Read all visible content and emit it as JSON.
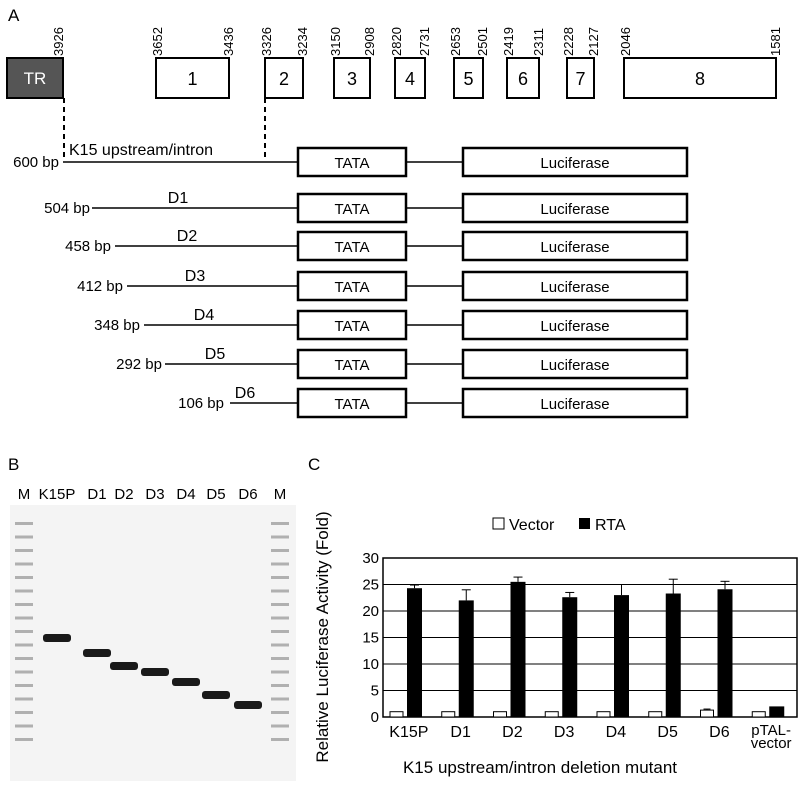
{
  "panel_labels": {
    "a": "A",
    "b": "B",
    "c": "C"
  },
  "panel_a": {
    "tr_label": "TR",
    "exons": [
      {
        "label": "1",
        "start": "3652",
        "end": "3436"
      },
      {
        "label": "2",
        "start": "3326",
        "end": "3234"
      },
      {
        "label": "3",
        "start": "3150",
        "end": "2908"
      },
      {
        "label": "4",
        "start": "2820",
        "end": "2731"
      },
      {
        "label": "5",
        "start": "2653",
        "end": "2501"
      },
      {
        "label": "6",
        "start": "2419",
        "end": "2311"
      },
      {
        "label": "7",
        "start": "2228",
        "end": "2127"
      },
      {
        "label": "8",
        "start": "2046",
        "end": "1581"
      }
    ],
    "tr_end": "3926",
    "region_label": "K15 upstream/intron",
    "tata_label": "TATA",
    "luciferase_label": "Luciferase",
    "constructs": [
      {
        "size": "600 bp",
        "name": ""
      },
      {
        "size": "504 bp",
        "name": "D1"
      },
      {
        "size": "458 bp",
        "name": "D2"
      },
      {
        "size": "412 bp",
        "name": "D3"
      },
      {
        "size": "348 bp",
        "name": "D4"
      },
      {
        "size": "292 bp",
        "name": "D5"
      },
      {
        "size": "106 bp",
        "name": "D6"
      }
    ]
  },
  "panel_b": {
    "lanes": [
      "M",
      "K15P",
      "D1",
      "D2",
      "D3",
      "D4",
      "D5",
      "D6",
      "M"
    ]
  },
  "chart_data": {
    "type": "bar",
    "categories": [
      "K15P",
      "D1",
      "D2",
      "D3",
      "D4",
      "D5",
      "D6",
      "pTAL-vector"
    ],
    "series": [
      {
        "name": "Vector",
        "values": [
          1.0,
          1.0,
          1.0,
          1.0,
          1.0,
          1.0,
          1.3,
          1.0
        ],
        "errors": [
          0,
          0,
          0,
          0,
          0,
          0,
          0.2,
          0
        ],
        "color": "#ffffff"
      },
      {
        "name": "RTA",
        "values": [
          24.3,
          22.0,
          25.5,
          22.6,
          23.0,
          23.3,
          24.1,
          2.0
        ],
        "errors": [
          0.6,
          2.0,
          0.9,
          0.9,
          2.0,
          2.7,
          1.5,
          0
        ],
        "color": "#000000"
      }
    ],
    "ylabel": "Relative Luciferase Activity (Fold)",
    "xlabel": "K15 upstream/intron deletion mutant",
    "ylim": [
      0,
      30
    ],
    "yticks": [
      0,
      5,
      10,
      15,
      20,
      25,
      30
    ],
    "grid": true,
    "legend": "top"
  }
}
